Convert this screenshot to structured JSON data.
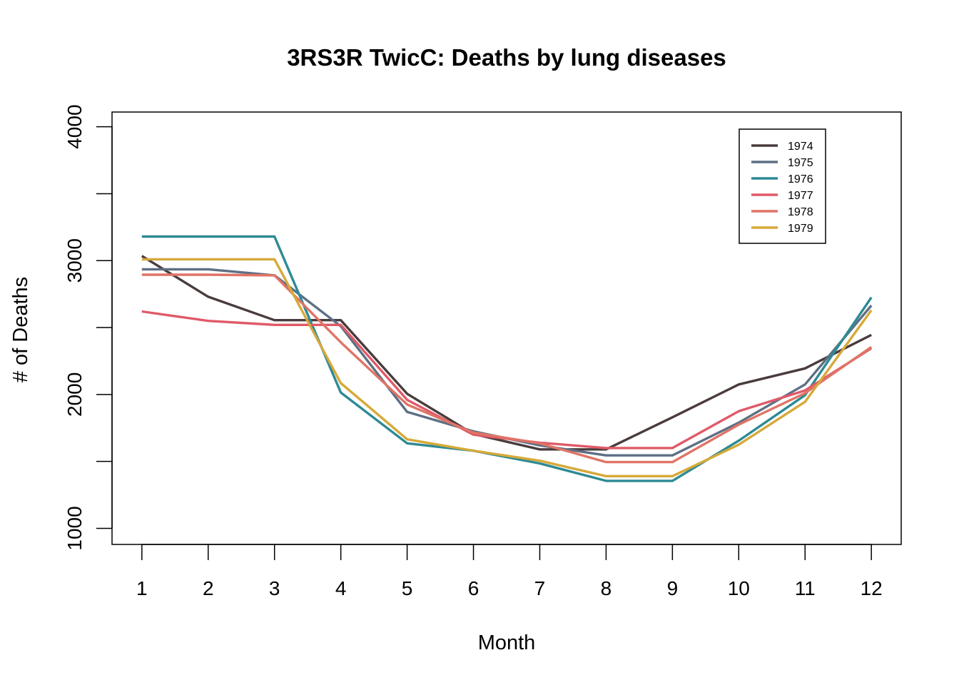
{
  "chart_data": {
    "type": "line",
    "title": "3RS3R TwicC: Deaths by lung diseases",
    "xlabel": "Month",
    "ylabel": "# of Deaths",
    "x": [
      1,
      2,
      3,
      4,
      5,
      6,
      7,
      8,
      9,
      10,
      11,
      12
    ],
    "x_tick_labels": [
      "1",
      "2",
      "3",
      "4",
      "5",
      "6",
      "7",
      "8",
      "9",
      "10",
      "11",
      "12"
    ],
    "y_ticks": [
      1000,
      1500,
      2000,
      2500,
      3000,
      3500,
      4000
    ],
    "y_tick_labels": [
      "1000",
      "",
      "2000",
      "",
      "3000",
      "",
      "4000"
    ],
    "xlim": [
      0.55,
      12.45
    ],
    "ylim": [
      880,
      4110
    ],
    "grid": false,
    "legend_position": "top-right",
    "series": [
      {
        "name": "1974",
        "color": "#4a3c3c",
        "values": [
          3035,
          2730,
          2555,
          2555,
          2005,
          1705,
          1590,
          1590,
          1830,
          2075,
          2195,
          2445
        ]
      },
      {
        "name": "1975",
        "color": "#5e6f84",
        "values": [
          2935,
          2935,
          2890,
          2510,
          1870,
          1725,
          1620,
          1545,
          1545,
          1790,
          2075,
          2665
        ]
      },
      {
        "name": "1976",
        "color": "#2d8a94",
        "values": [
          3180,
          3180,
          3180,
          2015,
          1635,
          1580,
          1485,
          1355,
          1355,
          1655,
          1995,
          2725
        ]
      },
      {
        "name": "1977",
        "color": "#e05a68",
        "values": [
          2620,
          2550,
          2520,
          2520,
          1960,
          1700,
          1640,
          1600,
          1600,
          1875,
          2030,
          2345
        ]
      },
      {
        "name": "1978",
        "color": "#e07466",
        "values": [
          2895,
          2895,
          2890,
          2390,
          1925,
          1715,
          1635,
          1495,
          1495,
          1775,
          2010,
          2355
        ]
      },
      {
        "name": "1979",
        "color": "#d6a93a",
        "values": [
          3010,
          3010,
          3010,
          2085,
          1665,
          1580,
          1505,
          1390,
          1390,
          1625,
          1945,
          2630
        ]
      }
    ]
  }
}
